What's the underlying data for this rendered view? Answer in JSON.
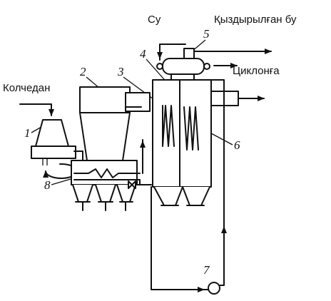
{
  "labels": {
    "feed": "Колчедан",
    "water": "Су",
    "steam": "Қыздырылған бу",
    "cyclone": "Циклонға"
  },
  "numbers": {
    "n1": "1",
    "n2": "2",
    "n3": "3",
    "n4": "4",
    "n5": "5",
    "n6": "6",
    "n7": "7",
    "n8": "8"
  }
}
